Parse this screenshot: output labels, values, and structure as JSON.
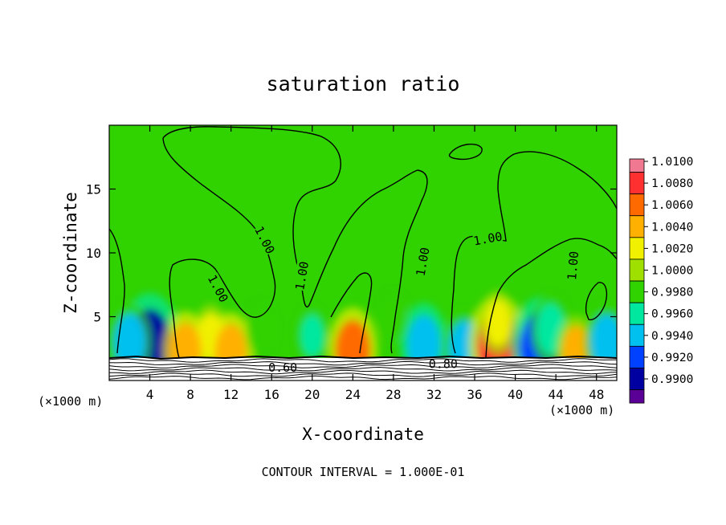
{
  "chart_data": {
    "type": "heatmap",
    "title": "saturation ratio",
    "xlabel": "X-coordinate",
    "ylabel": "Z-coordinate",
    "x_unit_left": "(×1000 m)",
    "x_unit_right": "(×1000 m)",
    "xlim": [
      0,
      50
    ],
    "ylim": [
      0,
      20
    ],
    "x_ticks": [
      4,
      8,
      12,
      16,
      20,
      24,
      28,
      32,
      36,
      40,
      44,
      48
    ],
    "x_tick_labels": [
      "4",
      "8",
      "12",
      "16",
      "20",
      "24",
      "28",
      "32",
      "36",
      "40",
      "44",
      "48"
    ],
    "y_ticks": [
      5,
      10,
      15
    ],
    "y_tick_labels": [
      "5",
      "10",
      "15"
    ],
    "background_value": 1.0,
    "colorbar": {
      "levels": [
        "1.0100",
        "1.0080",
        "1.0060",
        "1.0040",
        "1.0020",
        "1.0000",
        "0.9980",
        "0.9960",
        "0.9940",
        "0.9920",
        "0.9900"
      ],
      "colors": [
        "#f07890",
        "#ff3030",
        "#ff6a00",
        "#ffb000",
        "#f0f000",
        "#a0e000",
        "#30d200",
        "#00e8a0",
        "#00c0f0",
        "#0040ff",
        "#0000a0",
        "#5a0096"
      ]
    },
    "contour_labels": [
      {
        "text": "1.00",
        "x": 15.3,
        "z": 11.0
      },
      {
        "text": "1.00",
        "x": 10.7,
        "z": 7.2
      },
      {
        "text": "1.00",
        "x": 19.0,
        "z": 8.2
      },
      {
        "text": "1.00",
        "x": 30.9,
        "z": 9.3
      },
      {
        "text": "1.00",
        "x": 37.3,
        "z": 11.1
      },
      {
        "text": "1.00",
        "x": 45.7,
        "z": 9.0
      },
      {
        "text": "0.60",
        "x": 17.1,
        "z": 1.0
      },
      {
        "text": "0.80",
        "x": 32.9,
        "z": 1.3
      }
    ],
    "moist_blobs": [
      {
        "x": 4.0,
        "z": 2.5,
        "value": 0.991
      },
      {
        "x": 2.0,
        "z": 3.0,
        "value": 0.995
      },
      {
        "x": 10.0,
        "z": 3.5,
        "value": 1.003
      },
      {
        "x": 12.0,
        "z": 2.2,
        "value": 1.005
      },
      {
        "x": 7.5,
        "z": 2.3,
        "value": 1.005
      },
      {
        "x": 24.0,
        "z": 2.3,
        "value": 1.006
      },
      {
        "x": 20.0,
        "z": 3.5,
        "value": 0.9975
      },
      {
        "x": 31.0,
        "z": 2.8,
        "value": 0.9945
      },
      {
        "x": 35.0,
        "z": 2.5,
        "value": 0.995
      },
      {
        "x": 38.3,
        "z": 2.7,
        "value": 1.008
      },
      {
        "x": 38.3,
        "z": 4.5,
        "value": 1.003
      },
      {
        "x": 42.5,
        "z": 2.5,
        "value": 0.992
      },
      {
        "x": 43.5,
        "z": 4.0,
        "value": 0.996
      },
      {
        "x": 46.0,
        "z": 2.3,
        "value": 1.004
      },
      {
        "x": 49.0,
        "z": 3.0,
        "value": 0.995
      },
      {
        "x": 15.0,
        "z": 4.0,
        "value": 0.998
      },
      {
        "x": 28.0,
        "z": 5.0,
        "value": 0.9985
      }
    ]
  },
  "footer": {
    "contour_interval": "CONTOUR INTERVAL = 1.000E-01"
  }
}
